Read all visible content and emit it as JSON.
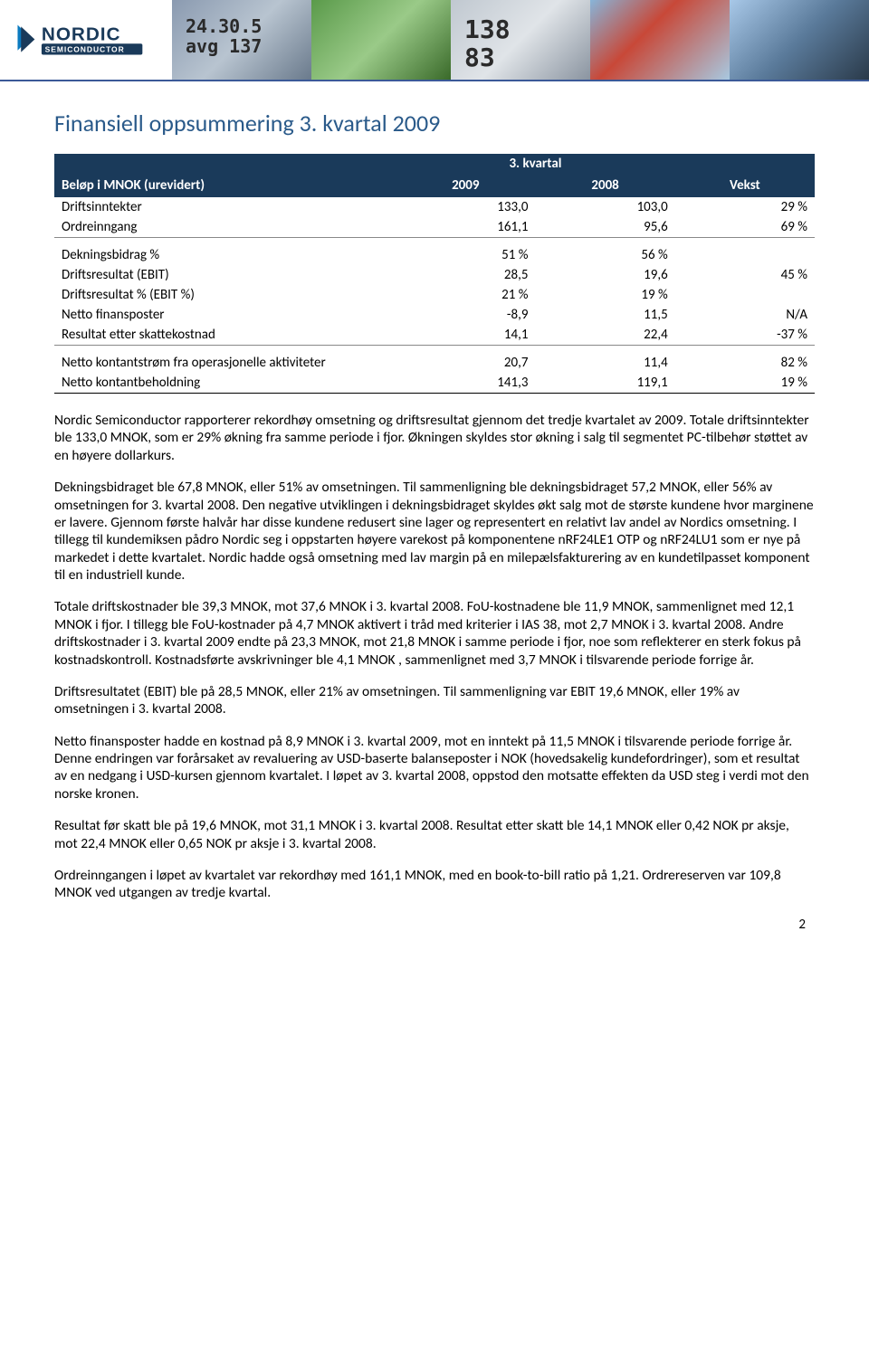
{
  "banner": {
    "photo1_text": "24.30.5\navg 137",
    "photo3_text": "138\n83"
  },
  "title": "Finansiell oppsummering 3. kvartal 2009",
  "table": {
    "period_header": "3. kvartal",
    "col_label": "Beløp i MNOK (urevidert)",
    "col_2009": "2009",
    "col_2008": "2008",
    "col_vekst": "Vekst",
    "rows": [
      {
        "label": "Driftsinntekter",
        "a": "133,0",
        "b": "103,0",
        "c": "29 %",
        "spacer": false,
        "sectend": false
      },
      {
        "label": "Ordreinngang",
        "a": "161,1",
        "b": "95,6",
        "c": "69 %",
        "sectend": true
      },
      {
        "label": "Dekningsbidrag %",
        "a": "51 %",
        "b": "56 %",
        "c": "",
        "spacer": true
      },
      {
        "label": "Driftsresultat (EBIT)",
        "a": "28,5",
        "b": "19,6",
        "c": "45 %"
      },
      {
        "label": "Driftsresultat % (EBIT %)",
        "a": "21 %",
        "b": "19 %",
        "c": ""
      },
      {
        "label": "Netto finansposter",
        "a": "-8,9",
        "b": "11,5",
        "c": "N/A"
      },
      {
        "label": "Resultat etter skattekostnad",
        "a": "14,1",
        "b": "22,4",
        "c": "-37 %",
        "sectend": true
      },
      {
        "label": "Netto kontantstrøm fra operasjonelle aktiviteter",
        "a": "20,7",
        "b": "11,4",
        "c": "82 %",
        "spacer": true
      },
      {
        "label": "Netto kontantbeholdning",
        "a": "141,3",
        "b": "119,1",
        "c": "19 %",
        "lasttotal": true
      }
    ]
  },
  "paragraphs": [
    "Nordic Semiconductor rapporterer rekordhøy omsetning og driftsresultat gjennom det tredje kvartalet av 2009.  Totale driftsinntekter ble 133,0 MNOK, som er 29% økning fra samme periode i fjor. Økningen skyldes stor økning i salg til segmentet PC-tilbehør støttet av en høyere dollarkurs.",
    "Dekningsbidraget ble 67,8 MNOK, eller 51% av omsetningen. Til sammenligning ble dekningsbidraget 57,2 MNOK, eller 56% av omsetningen for 3. kvartal 2008.  Den negative utviklingen i dekningsbidraget skyldes økt salg mot de største kundene hvor marginene er lavere.  Gjennom første halvår har disse kundene redusert sine lager og representert en relativt lav andel av Nordics omsetning.  I tillegg til kundemiksen pådro Nordic seg i oppstarten høyere varekost på komponentene nRF24LE1 OTP og nRF24LU1 som er nye på markedet i dette kvartalet.   Nordic hadde også omsetning med lav margin på en milepælsfakturering av en kundetilpasset komponent til en industriell kunde.",
    "Totale driftskostnader ble 39,3 MNOK, mot 37,6 MNOK i 3. kvartal 2008. FoU-kostnadene ble 11,9 MNOK, sammenlignet med 12,1 MNOK i fjor.  I tillegg ble FoU-kostnader på 4,7 MNOK aktivert i tråd med kriterier i IAS 38, mot 2,7 MNOK i 3. kvartal 2008.  Andre driftskostnader i 3. kvartal 2009 endte på 23,3 MNOK, mot 21,8 MNOK i samme periode i fjor, noe som reflekterer en sterk fokus på kostnadskontroll. Kostnadsførte avskrivninger ble 4,1 MNOK , sammenlignet med 3,7 MNOK i tilsvarende periode forrige år.",
    "Driftsresultatet (EBIT) ble på 28,5 MNOK, eller 21% av omsetningen.  Til sammenligning var EBIT 19,6 MNOK, eller 19% av omsetningen i 3. kvartal 2008.",
    "Netto finansposter hadde en kostnad på 8,9 MNOK i 3. kvartal 2009, mot en inntekt på 11,5 MNOK i tilsvarende periode forrige år.  Denne endringen var forårsaket av revaluering av USD-baserte balanseposter i NOK (hovedsakelig kundefordringer), som et resultat av en nedgang i USD-kursen gjennom kvartalet.  I løpet av 3. kvartal 2008, oppstod den motsatte effekten da USD steg i verdi mot den norske kronen.",
    "Resultat før skatt ble på 19,6 MNOK, mot 31,1 MNOK i 3. kvartal 2008.  Resultat etter skatt ble 14,1 MNOK eller 0,42 NOK pr aksje, mot 22,4 MNOK eller 0,65 NOK pr aksje i 3. kvartal 2008.",
    "Ordreinngangen i løpet av kvartalet var rekordhøy med 161,1 MNOK, med en book-to-bill ratio på 1,21.  Ordrereserven var 109,8 MNOK ved utgangen av tredje kvartal."
  ],
  "page_number": "2"
}
